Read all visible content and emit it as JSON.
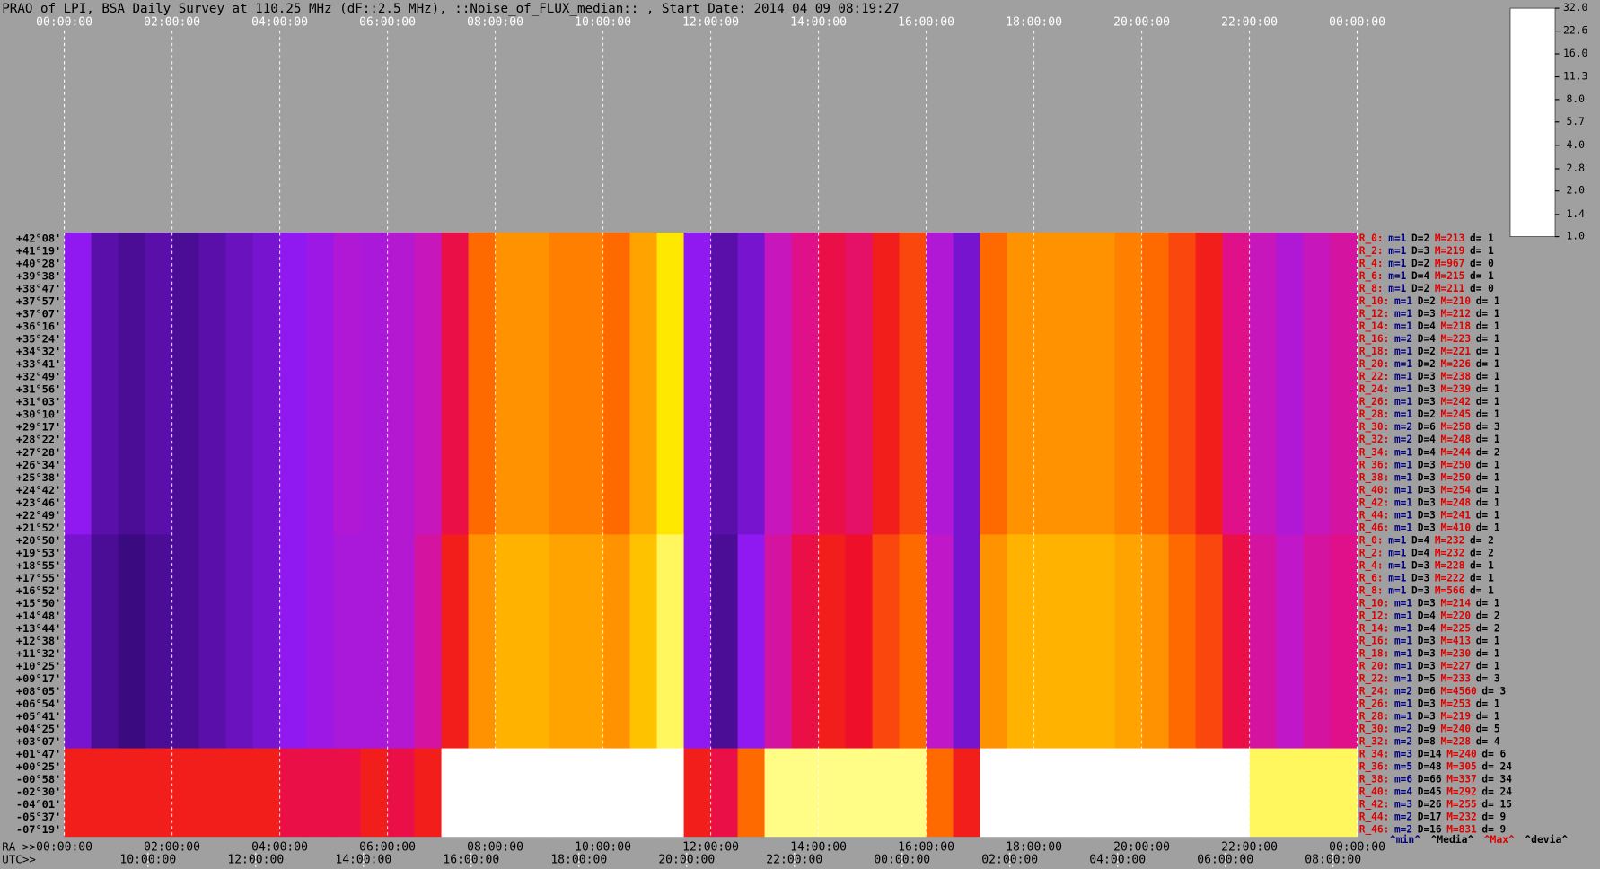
{
  "chart_data": {
    "type": "heatmap",
    "title": "PRAO of LPI, BSA Daily Survey at 110.25 MHz (dF::2.5 MHz), ::Noise_of_FLUX_median:: , Start Date: 2014 04 09 08:19:27",
    "colorbar_ticks": [
      {
        "value": 32,
        "label": "32.0"
      },
      22.6,
      {
        "value": 16,
        "label": "16.0"
      },
      11.3,
      {
        "value": 8,
        "label": "8.0"
      },
      5.7,
      {
        "value": 4,
        "label": "4.0"
      },
      2.8,
      {
        "value": 2,
        "label": "2.0"
      },
      1.4,
      {
        "value": 1,
        "label": "1.0"
      }
    ],
    "colormap": [
      "#ffffff",
      "#ffff90",
      "#ffe800",
      "#ffa800",
      "#ff6a00",
      "#f01020",
      "#e0108a",
      "#c018c8",
      "#9018f0",
      "#3a0a80",
      "#000008"
    ],
    "log_scale": true,
    "z": [
      [
        2.0,
        1.6,
        1.5,
        1.6,
        1.5,
        1.6,
        1.7,
        1.8,
        2.0,
        2.2,
        2.5,
        2.4,
        2.6,
        3.0,
        5.0,
        8.0,
        10,
        10,
        9,
        9,
        8,
        11,
        16,
        2.0,
        1.6,
        1.8,
        3.0,
        4.0,
        5.0,
        4.5,
        6.0,
        7.0,
        2.5,
        1.8,
        8.0,
        10,
        10,
        10,
        10,
        9,
        8,
        7,
        6,
        4.0,
        3.0,
        2.5,
        3.0,
        3.5
      ],
      [
        1.8,
        1.5,
        1.4,
        1.5,
        1.5,
        1.6,
        1.7,
        1.8,
        2.0,
        2.2,
        2.4,
        2.4,
        2.6,
        3.5,
        6.0,
        10,
        12,
        12,
        11,
        11,
        10,
        13,
        20,
        2.0,
        1.5,
        2.0,
        3.5,
        5.0,
        6.0,
        5.5,
        7.0,
        8.0,
        2.8,
        1.8,
        10,
        12,
        12,
        12,
        12,
        11,
        10,
        8,
        7,
        5.0,
        3.5,
        2.8,
        3.5,
        4.0
      ],
      [
        6,
        6,
        6,
        6,
        6,
        6,
        6,
        6,
        5,
        5,
        5,
        6,
        5,
        6,
        32,
        32,
        32,
        32,
        32,
        32,
        32,
        32,
        32,
        6,
        5,
        8,
        22,
        22,
        22,
        22,
        22,
        22,
        8,
        6,
        32,
        32,
        32,
        32,
        32,
        32,
        32,
        32,
        32,
        32,
        20,
        20,
        20,
        20
      ]
    ]
  },
  "ra_axis": {
    "label": "RA >>",
    "ticks": [
      "00:00:00",
      "02:00:00",
      "04:00:00",
      "06:00:00",
      "08:00:00",
      "10:00:00",
      "12:00:00",
      "14:00:00",
      "16:00:00",
      "18:00:00",
      "20:00:00",
      "22:00:00",
      "00:00:00"
    ]
  },
  "utc_axis": {
    "label": "UTC>>",
    "ticks": [
      "10:00:00",
      "12:00:00",
      "14:00:00",
      "16:00:00",
      "18:00:00",
      "20:00:00",
      "22:00:00",
      "00:00:00",
      "02:00:00",
      "04:00:00",
      "06:00:00",
      "08:00:00"
    ]
  },
  "declinations": [
    "+42°08'",
    "+41°19'",
    "+40°28'",
    "+39°38'",
    "+38°47'",
    "+37°57'",
    "+37°07'",
    "+36°16'",
    "+35°24'",
    "+34°32'",
    "+33°41'",
    "+32°49'",
    "+31°56'",
    "+31°03'",
    "+30°10'",
    "+29°17'",
    "+28°22'",
    "+27°28'",
    "+26°34'",
    "+25°38'",
    "+24°42'",
    "+23°46'",
    "+22°49'",
    "+21°52'",
    "+20°50'",
    "+19°53'",
    "+18°55'",
    "+17°55'",
    "+16°52'",
    "+15°50'",
    "+14°48'",
    "+13°44'",
    "+12°38'",
    "+11°32'",
    "+10°25'",
    "+09°17'",
    "+08°05'",
    "+06°54'",
    "+05°41'",
    "+04°25'",
    "+03°07'",
    "+01°47'",
    "+00°25'",
    "-00°58'",
    "-02°30'",
    "-04°01'",
    "-05°37'",
    "-07°19'"
  ],
  "row_stats": [
    [
      "R_0:",
      "m=1",
      "D=2",
      "M=213",
      "d= 1"
    ],
    [
      "R_2:",
      "m=1",
      "D=3",
      "M=219",
      "d= 1"
    ],
    [
      "R_4:",
      "m=1",
      "D=2",
      "M=967",
      "d= 0"
    ],
    [
      "R_6:",
      "m=1",
      "D=4",
      "M=215",
      "d= 1"
    ],
    [
      "R_8:",
      "m=1",
      "D=2",
      "M=211",
      "d= 0"
    ],
    [
      "R_10:",
      "m=1",
      "D=2",
      "M=210",
      "d= 1"
    ],
    [
      "R_12:",
      "m=1",
      "D=3",
      "M=212",
      "d= 1"
    ],
    [
      "R_14:",
      "m=1",
      "D=4",
      "M=218",
      "d= 1"
    ],
    [
      "R_16:",
      "m=2",
      "D=4",
      "M=223",
      "d= 1"
    ],
    [
      "R_18:",
      "m=1",
      "D=2",
      "M=221",
      "d= 1"
    ],
    [
      "R_20:",
      "m=1",
      "D=2",
      "M=226",
      "d= 1"
    ],
    [
      "R_22:",
      "m=1",
      "D=3",
      "M=238",
      "d= 1"
    ],
    [
      "R_24:",
      "m=1",
      "D=3",
      "M=239",
      "d= 1"
    ],
    [
      "R_26:",
      "m=1",
      "D=3",
      "M=242",
      "d= 1"
    ],
    [
      "R_28:",
      "m=1",
      "D=2",
      "M=245",
      "d= 1"
    ],
    [
      "R_30:",
      "m=2",
      "D=6",
      "M=258",
      "d= 3"
    ],
    [
      "R_32:",
      "m=2",
      "D=4",
      "M=248",
      "d= 1"
    ],
    [
      "R_34:",
      "m=1",
      "D=4",
      "M=244",
      "d= 2"
    ],
    [
      "R_36:",
      "m=1",
      "D=3",
      "M=250",
      "d= 1"
    ],
    [
      "R_38:",
      "m=1",
      "D=3",
      "M=250",
      "d= 1"
    ],
    [
      "R_40:",
      "m=1",
      "D=3",
      "M=254",
      "d= 1"
    ],
    [
      "R_42:",
      "m=1",
      "D=3",
      "M=248",
      "d= 1"
    ],
    [
      "R_44:",
      "m=1",
      "D=3",
      "M=241",
      "d= 1"
    ],
    [
      "R_46:",
      "m=1",
      "D=3",
      "M=410",
      "d= 1"
    ],
    [
      "R_0:",
      "m=1",
      "D=4",
      "M=232",
      "d= 2"
    ],
    [
      "R_2:",
      "m=1",
      "D=4",
      "M=232",
      "d= 2"
    ],
    [
      "R_4:",
      "m=1",
      "D=3",
      "M=228",
      "d= 1"
    ],
    [
      "R_6:",
      "m=1",
      "D=3",
      "M=222",
      "d= 1"
    ],
    [
      "R_8:",
      "m=1",
      "D=3",
      "M=566",
      "d= 1"
    ],
    [
      "R_10:",
      "m=1",
      "D=3",
      "M=214",
      "d= 1"
    ],
    [
      "R_12:",
      "m=1",
      "D=4",
      "M=220",
      "d= 2"
    ],
    [
      "R_14:",
      "m=1",
      "D=4",
      "M=225",
      "d= 2"
    ],
    [
      "R_16:",
      "m=1",
      "D=3",
      "M=413",
      "d= 1"
    ],
    [
      "R_18:",
      "m=1",
      "D=3",
      "M=230",
      "d= 1"
    ],
    [
      "R_20:",
      "m=1",
      "D=3",
      "M=227",
      "d= 1"
    ],
    [
      "R_22:",
      "m=1",
      "D=5",
      "M=233",
      "d= 3"
    ],
    [
      "R_24:",
      "m=2",
      "D=6",
      "M=4560",
      "d= 3"
    ],
    [
      "R_26:",
      "m=1",
      "D=3",
      "M=253",
      "d= 1"
    ],
    [
      "R_28:",
      "m=1",
      "D=3",
      "M=219",
      "d= 1"
    ],
    [
      "R_30:",
      "m=2",
      "D=9",
      "M=240",
      "d= 5"
    ],
    [
      "R_32:",
      "m=2",
      "D=8",
      "M=228",
      "d= 4"
    ],
    [
      "R_34:",
      "m=3",
      "D=14",
      "M=240",
      "d= 6"
    ],
    [
      "R_36:",
      "m=5",
      "D=48",
      "M=305",
      "d= 24"
    ],
    [
      "R_38:",
      "m=6",
      "D=66",
      "M=337",
      "d= 34"
    ],
    [
      "R_40:",
      "m=4",
      "D=45",
      "M=292",
      "d= 24"
    ],
    [
      "R_42:",
      "m=3",
      "D=26",
      "M=255",
      "d= 15"
    ],
    [
      "R_44:",
      "m=2",
      "D=17",
      "M=232",
      "d= 9"
    ],
    [
      "R_46:",
      "m=2",
      "D=16",
      "M=831",
      "d= 9"
    ]
  ],
  "stats_legend": [
    "^min^",
    "^Media^",
    "^Max^",
    "^devia^"
  ]
}
